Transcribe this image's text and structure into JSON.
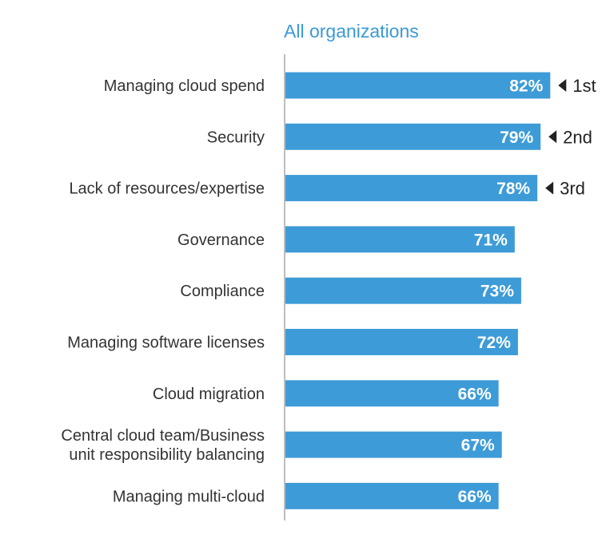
{
  "chart_data": {
    "type": "bar",
    "orientation": "horizontal",
    "title": "All organizations",
    "categories": [
      [
        "Managing cloud spend"
      ],
      [
        "Security"
      ],
      [
        "Lack of resources/expertise"
      ],
      [
        "Governance"
      ],
      [
        "Compliance"
      ],
      [
        "Managing software licenses"
      ],
      [
        "Cloud migration"
      ],
      [
        "Central cloud team/Business",
        "unit responsibility balancing"
      ],
      [
        "Managing multi-cloud"
      ]
    ],
    "values": [
      82,
      79,
      78,
      71,
      73,
      72,
      66,
      67,
      66
    ],
    "value_labels": [
      "82%",
      "79%",
      "78%",
      "71%",
      "73%",
      "72%",
      "66%",
      "67%",
      "66%"
    ],
    "ranks": [
      {
        "index": 0,
        "label": "1st"
      },
      {
        "index": 1,
        "label": "2nd"
      },
      {
        "index": 2,
        "label": "3rd"
      }
    ],
    "unit": "%",
    "xlim": [
      0,
      100
    ],
    "grid": false,
    "legend": "none",
    "bar_color": "#3d9bd8"
  }
}
